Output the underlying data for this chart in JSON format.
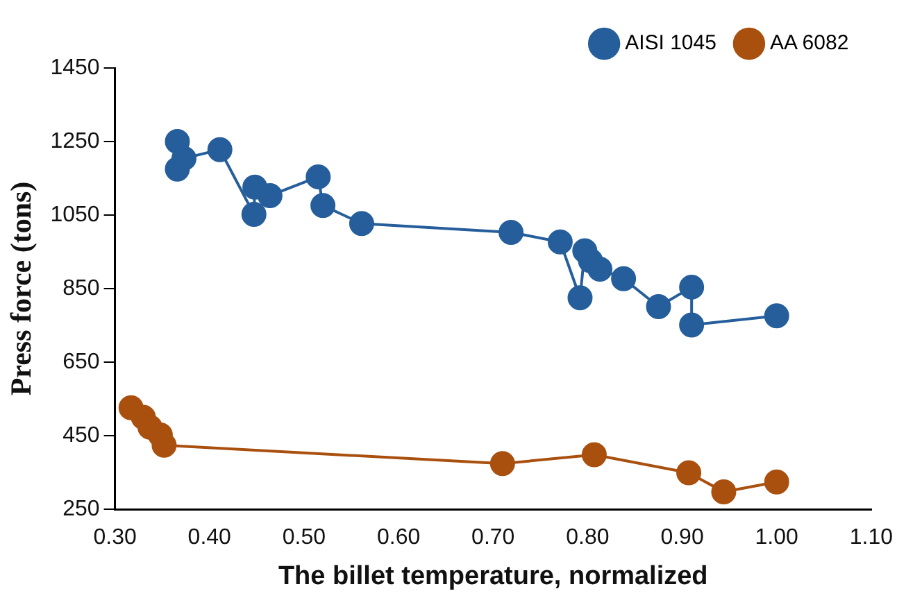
{
  "chart_data": {
    "type": "line",
    "xlabel": "The billet temperature, normalized",
    "ylabel": "Press force (tons)",
    "xlim": [
      0.3,
      1.1
    ],
    "xticks": [
      {
        "value": 0.3,
        "label": "0.30"
      },
      {
        "value": 0.4,
        "label": "0.40"
      },
      {
        "value": 0.5,
        "label": "0.50"
      },
      {
        "value": 0.6,
        "label": "0.60"
      },
      {
        "value": 0.7,
        "label": "0.70"
      },
      {
        "value": 0.8,
        "label": "0.80"
      },
      {
        "value": 0.9,
        "label": "0.90"
      },
      {
        "value": 1.0,
        "label": "1.00"
      },
      {
        "value": 1.1,
        "label": "1.10"
      }
    ],
    "ylim": [
      250,
      1450
    ],
    "yticks": [
      250,
      450,
      650,
      850,
      1050,
      1250,
      1450
    ],
    "grid": false,
    "legend": "top right",
    "marker": "circle",
    "line_style": "solid",
    "series": [
      {
        "name": "AISI 1045",
        "color": "#255e9b",
        "x": [
          0.366,
          0.366,
          0.373,
          0.411,
          0.447,
          0.448,
          0.464,
          0.515,
          0.52,
          0.561,
          0.719,
          0.771,
          0.792,
          0.797,
          0.803,
          0.813,
          0.838,
          0.875,
          0.91,
          0.91,
          1.0
        ],
        "values": [
          1250,
          1175,
          1204,
          1228,
          1052,
          1126,
          1103,
          1154,
          1076,
          1027,
          1003,
          977,
          825,
          953,
          926,
          903,
          877,
          801,
          854,
          751,
          776
        ]
      },
      {
        "name": "AA 6082",
        "color": "#a9500f",
        "x": [
          0.317,
          0.33,
          0.337,
          0.348,
          0.352,
          0.71,
          0.807,
          0.907,
          0.944,
          1.0
        ],
        "values": [
          526,
          500,
          473,
          452,
          424,
          374,
          398,
          349,
          297,
          324
        ]
      }
    ]
  }
}
